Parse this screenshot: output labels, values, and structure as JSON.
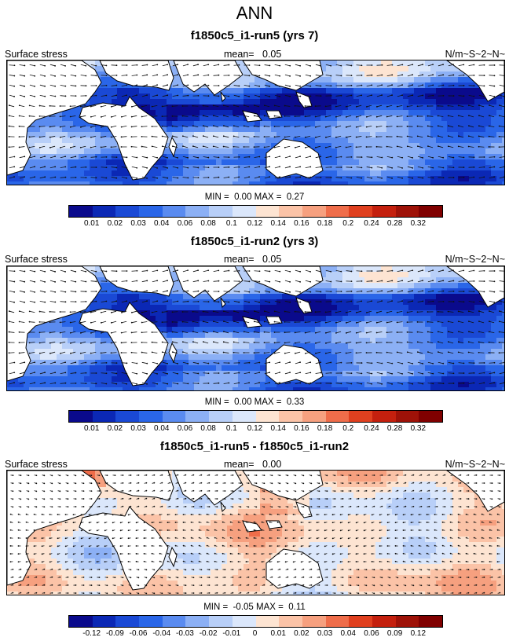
{
  "page_title": "ANN",
  "colors": {
    "seq": [
      "#0a0a8c",
      "#0b28b5",
      "#1a49d5",
      "#2a66e8",
      "#5a8bf0",
      "#8cb0f5",
      "#b8cff8",
      "#dbe7fb",
      "#fde4d2",
      "#fbc3a7",
      "#f6a07f",
      "#ef6d4a",
      "#e0401f",
      "#c4200e",
      "#9e1208",
      "#800000"
    ],
    "diff": [
      "#0a0a8c",
      "#0b28b5",
      "#1a49d5",
      "#2a66e8",
      "#5a8bf0",
      "#8cb0f5",
      "#b8cff8",
      "#dbe7fb",
      "#fde4d2",
      "#fbc3a7",
      "#f6a07f",
      "#ef6d4a",
      "#e0401f",
      "#c4200e",
      "#9e1208",
      "#800000"
    ]
  },
  "chart_data": [
    {
      "type": "heatmap",
      "title": "f1850c5_i1-run5 (yrs 7)",
      "left_label": "Surface stress",
      "mean_label": "mean=",
      "mean_value": "0.05",
      "units": "N/m~S~2~N~",
      "min_label": "MIN =",
      "min_value": "0.00",
      "max_label": "MAX =",
      "max_value": "0.27",
      "colorbar_levels": [
        "0.01",
        "0.02",
        "0.03",
        "0.04",
        "0.06",
        "0.08",
        "0.1",
        "0.12",
        "0.14",
        "0.16",
        "0.18",
        "0.2",
        "0.24",
        "0.28",
        "0.32"
      ]
    },
    {
      "type": "heatmap",
      "title": "f1850c5_i1-run2 (yrs 3)",
      "left_label": "Surface stress",
      "mean_label": "mean=",
      "mean_value": "0.05",
      "units": "N/m~S~2~N~",
      "min_label": "MIN =",
      "min_value": "0.00",
      "max_label": "MAX =",
      "max_value": "0.33",
      "colorbar_levels": [
        "0.01",
        "0.02",
        "0.03",
        "0.04",
        "0.06",
        "0.08",
        "0.1",
        "0.12",
        "0.14",
        "0.16",
        "0.18",
        "0.2",
        "0.24",
        "0.28",
        "0.32"
      ]
    },
    {
      "type": "heatmap",
      "title": "f1850c5_i1-run5 - f1850c5_i1-run2",
      "left_label": "Surface stress",
      "mean_label": "mean=",
      "mean_value": "0.00",
      "units": "N/m~S~2~N~",
      "min_label": "MIN =",
      "min_value": "-0.05",
      "max_label": "MAX =",
      "max_value": "0.11",
      "colorbar_levels": [
        "-0.12",
        "-0.09",
        "-0.06",
        "-0.04",
        "-0.03",
        "-0.02",
        "-0.01",
        "0",
        "0.01",
        "0.02",
        "0.03",
        "0.04",
        "0.06",
        "0.09",
        "0.12"
      ]
    }
  ]
}
